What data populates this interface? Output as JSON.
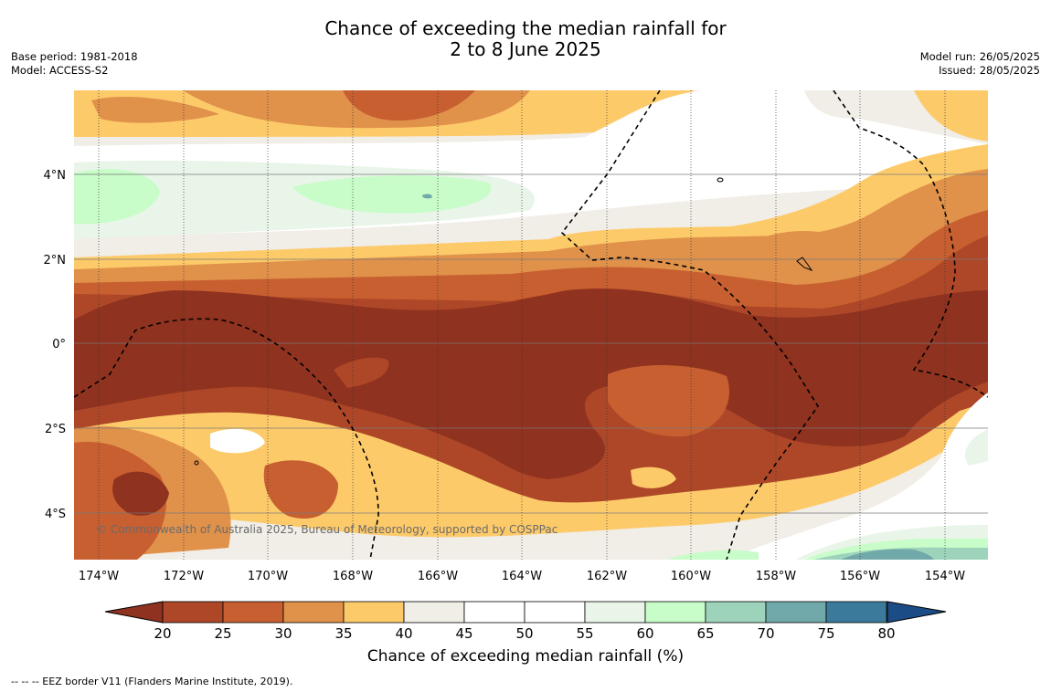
{
  "title": {
    "line1": "Chance of exceeding the median rainfall for",
    "line2": "2 to 8 June 2025"
  },
  "meta_left": {
    "base_period": "Base period: 1981-2018",
    "model": "Model: ACCESS-S2"
  },
  "meta_right": {
    "model_run": "Model run: 26/05/2025",
    "issued": "Issued: 28/05/2025"
  },
  "map": {
    "lat_labels": [
      "4°N",
      "2°N",
      "0°",
      "2°S",
      "4°S"
    ],
    "lon_labels": [
      "174°W",
      "172°W",
      "170°W",
      "168°W",
      "166°W",
      "164°W",
      "162°W",
      "160°W",
      "158°W",
      "156°W",
      "154°W"
    ],
    "copyright": "© Commonwealth of Australia 2025, Bureau of Meteorology, supported by COSPPac"
  },
  "colorbar": {
    "ticks": [
      "20",
      "25",
      "30",
      "35",
      "40",
      "45",
      "50",
      "55",
      "60",
      "65",
      "70",
      "75",
      "80"
    ],
    "colors": [
      "#8f321f",
      "#ad4728",
      "#c75f30",
      "#e0914a",
      "#fdca69",
      "#f1ede7",
      "#ffffff",
      "#ffffff",
      "#e9f5e9",
      "#c8fcc8",
      "#9dd3bb",
      "#71a8aa",
      "#3c7a9b",
      "#1b4c86"
    ],
    "label": "Chance of exceeding median rainfall (%)"
  },
  "footnote": "-- -- -- EEZ border V11 (Flanders Marine Institute, 2019)."
}
